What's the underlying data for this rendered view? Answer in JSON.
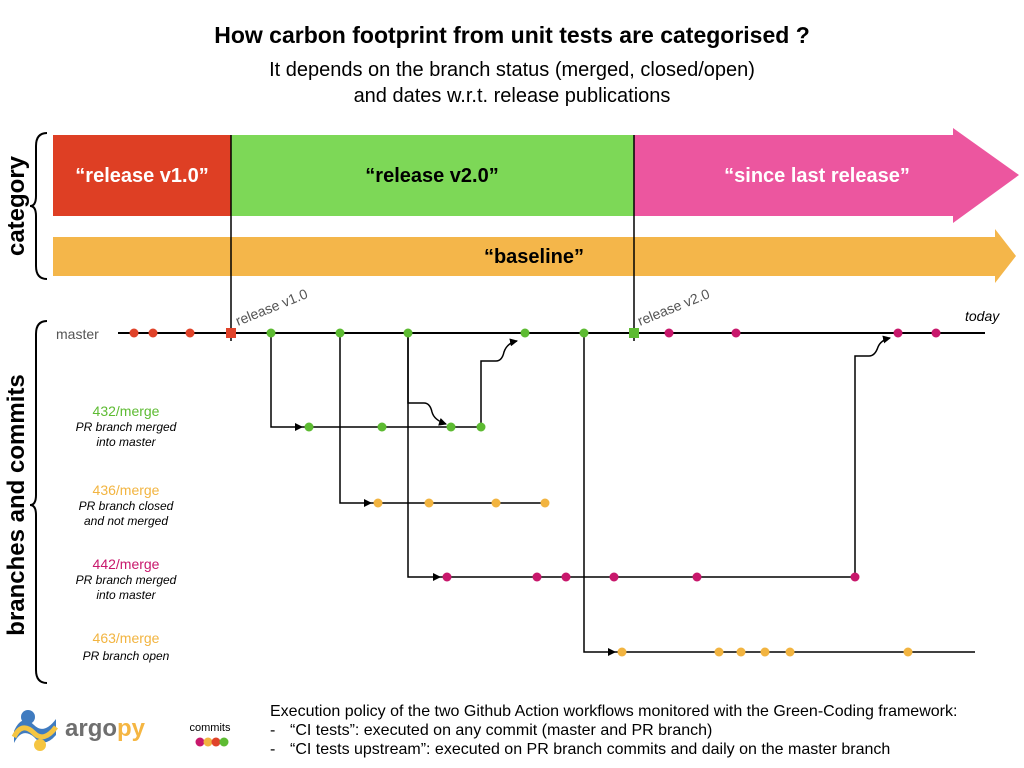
{
  "title": "How carbon footprint from unit tests are categorised ?",
  "subtitle_line1": "It depends on the branch status (merged, closed/open)",
  "subtitle_line2": "and dates w.r.t. release publications",
  "side_labels": {
    "category": "category",
    "branches": "branches and commits"
  },
  "categories": {
    "release_v1": "“release v1.0”",
    "release_v2": "“release v2.0”",
    "since_last": "“since last release”",
    "baseline": "“baseline”"
  },
  "releases": {
    "v1": "release v1.0",
    "v2": "release v2.0"
  },
  "master_label": "master",
  "today_label": "today",
  "branches": [
    {
      "name": "432/merge",
      "desc1": "PR branch merged",
      "desc2": "into master"
    },
    {
      "name": "436/merge",
      "desc1": "PR branch closed",
      "desc2": "and not merged"
    },
    {
      "name": "442/merge",
      "desc1": "PR branch merged",
      "desc2": "into master"
    },
    {
      "name": "463/merge",
      "desc1": "PR branch open",
      "desc2": ""
    }
  ],
  "legend_commits": "commits",
  "policy": {
    "intro": "Execution policy of the two Github Action workflows monitored with the Green-Coding framework:",
    "items": [
      "“CI tests”: executed on any commit (master and PR branch)",
      "“CI tests upstream”: executed on PR branch commits and daily on the master branch"
    ]
  },
  "logo": {
    "part1": "argo",
    "part2": "py"
  },
  "colors": {
    "red": "#e0432a",
    "green": "#5dbb32",
    "pink": "#c8186c",
    "orange": "#f2b440",
    "cat_red": "#de3f24",
    "cat_green": "#7dd857",
    "cat_pink": "#ec569f",
    "cat_orange": "#f4b64a"
  }
}
